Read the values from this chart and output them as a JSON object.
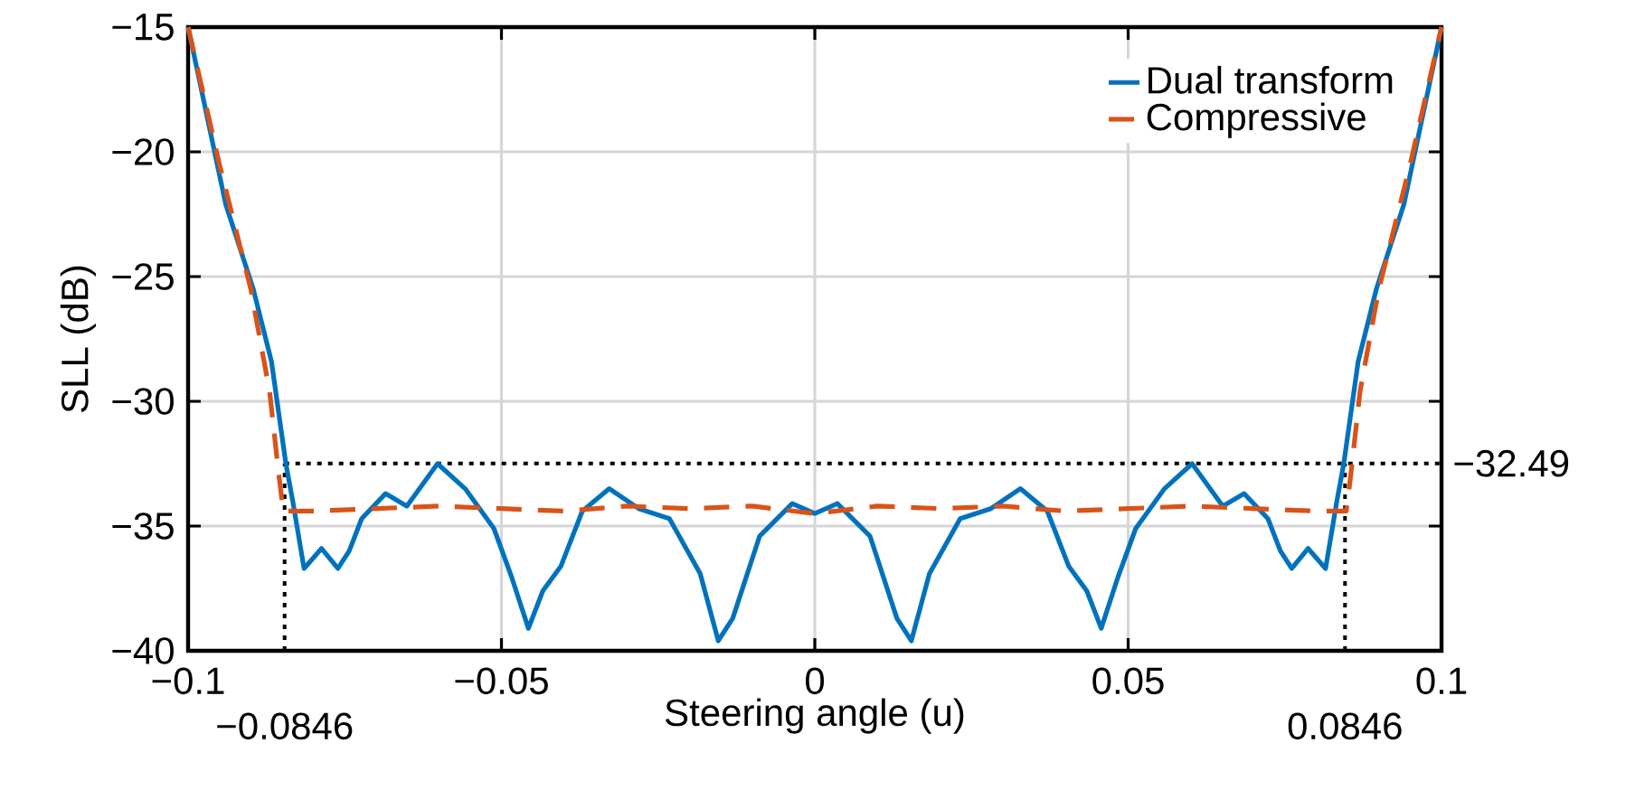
{
  "chart_data": {
    "type": "line",
    "xlabel": "Steering angle (u)",
    "ylabel": "SLL (dB)",
    "xlim": [
      -0.1,
      0.1
    ],
    "ylim": [
      -40,
      -15
    ],
    "xticks": [
      {
        "value": -0.1,
        "label": "−0.1"
      },
      {
        "value": -0.05,
        "label": "−0.05"
      },
      0,
      0.05,
      0.1
    ],
    "yticks": [
      {
        "value": -40,
        "label": "−40"
      },
      {
        "value": -35,
        "label": "−35"
      },
      {
        "value": -30,
        "label": "−30"
      },
      {
        "value": -25,
        "label": "−25"
      },
      {
        "value": -20,
        "label": "−20"
      },
      {
        "value": -15,
        "label": "−15"
      }
    ],
    "grid": true,
    "legend": "top right",
    "series": [
      {
        "name": "Dual transform",
        "color": "#0072bd",
        "line_style": "solid",
        "x": [
          -0.1,
          -0.094,
          -0.0896,
          -0.0867,
          -0.0844,
          -0.0833,
          -0.0815,
          -0.0787,
          -0.0761,
          -0.0743,
          -0.0723,
          -0.0685,
          -0.0651,
          -0.0602,
          -0.0558,
          -0.0512,
          -0.0483,
          -0.0457,
          -0.0434,
          -0.0405,
          -0.0371,
          -0.0328,
          -0.0281,
          -0.0232,
          -0.0183,
          -0.0154,
          -0.0131,
          -0.0088,
          -0.0036,
          0,
          0.0036,
          0.0088,
          0.0131,
          0.0154,
          0.0183,
          0.0232,
          0.0281,
          0.0328,
          0.0371,
          0.0405,
          0.0434,
          0.0457,
          0.0483,
          0.0512,
          0.0558,
          0.0602,
          0.0651,
          0.0685,
          0.0723,
          0.0743,
          0.0761,
          0.0787,
          0.0815,
          0.0833,
          0.0844,
          0.0867,
          0.0896,
          0.094,
          0.1
        ],
        "values": [
          -15,
          -22.1,
          -25.5,
          -28.4,
          -32.5,
          -34,
          -36.7,
          -35.9,
          -36.7,
          -36,
          -34.7,
          -33.7,
          -34.2,
          -32.5,
          -33.5,
          -35.1,
          -37.1,
          -39.1,
          -37.6,
          -36.6,
          -34.4,
          -33.5,
          -34.3,
          -34.7,
          -36.9,
          -39.6,
          -38.7,
          -35.4,
          -34.1,
          -34.5,
          -34.1,
          -35.4,
          -38.7,
          -39.6,
          -36.9,
          -34.7,
          -34.3,
          -33.5,
          -34.4,
          -36.6,
          -37.6,
          -39.1,
          -37.1,
          -35.1,
          -33.5,
          -32.5,
          -34.2,
          -33.7,
          -34.7,
          -36,
          -36.7,
          -35.9,
          -36.7,
          -34,
          -32.5,
          -28.4,
          -25.5,
          -22.1,
          -15
        ]
      },
      {
        "name": "Compressive",
        "color": "#d95319",
        "line_style": "dashed",
        "x": [
          -0.1,
          -0.095,
          -0.09,
          -0.087,
          -0.0855,
          -0.0848,
          -0.08,
          -0.07,
          -0.06,
          -0.05,
          -0.04,
          -0.03,
          -0.02,
          -0.01,
          0,
          0.01,
          0.02,
          0.03,
          0.04,
          0.05,
          0.06,
          0.07,
          0.08,
          0.0848,
          0.0855,
          0.087,
          0.09,
          0.095,
          0.1
        ],
        "values": [
          -15,
          -20.5,
          -25.5,
          -29.6,
          -33,
          -34.4,
          -34.4,
          -34.3,
          -34.2,
          -34.3,
          -34.4,
          -34.2,
          -34.3,
          -34.2,
          -34.5,
          -34.2,
          -34.3,
          -34.2,
          -34.4,
          -34.3,
          -34.2,
          -34.3,
          -34.4,
          -34.4,
          -33,
          -29.6,
          -25.5,
          -20.5,
          -15
        ]
      }
    ],
    "ref_lines": [
      {
        "axis": "y",
        "value": -32.49,
        "label": "−32.49",
        "color": "#000000",
        "line_style": "dotted"
      },
      {
        "axis": "x",
        "value": -0.0846,
        "label": "−0.0846",
        "color": "#000000",
        "line_style": "dotted"
      },
      {
        "axis": "x",
        "value": 0.0846,
        "label": "0.0846",
        "color": "#000000",
        "line_style": "dotted"
      }
    ]
  }
}
